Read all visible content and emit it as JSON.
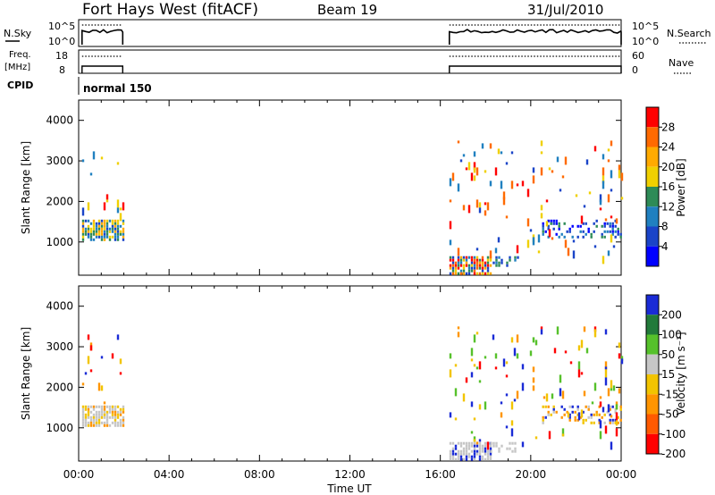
{
  "header": {
    "station": "Fort Hays West (fitACF)",
    "beam": "Beam 19",
    "date": "31/Jul/2010"
  },
  "top_panels": {
    "nsky_label": "N.Sky",
    "nsky_ticks": [
      "10^5",
      "10^0"
    ],
    "nsearch_label": "N.Search",
    "nsearch_ticks": [
      "10^5",
      "10^0"
    ],
    "freq_label_1": "Freq.",
    "freq_label_2": "[MHz]",
    "freq_ticks": [
      "18",
      "8"
    ],
    "nave_label": "Nave",
    "nave_ticks": [
      "60",
      "0"
    ],
    "cpid_label": "CPID",
    "cpid_value": "normal 150"
  },
  "colorbars": {
    "power": {
      "label": "Power [dB]",
      "ticks": [
        "28",
        "24",
        "20",
        "16",
        "12",
        "8",
        "4"
      ],
      "colors": [
        "#ff0000",
        "#ff6a00",
        "#ffaa00",
        "#f0d000",
        "#2e8b57",
        "#2080c0",
        "#1a44c8",
        "#0000ff"
      ]
    },
    "velocity": {
      "label": "Velocity [m s⁻¹]",
      "ticks": [
        "200",
        "100",
        "50",
        "15",
        "-15",
        "-50",
        "-100",
        "-200"
      ],
      "colors": [
        "#1a2bd6",
        "#227a3a",
        "#56c12b",
        "#c6c6c6",
        "#f2c400",
        "#ff9500",
        "#ff5a00",
        "#ff0000"
      ]
    }
  },
  "chart_data": [
    {
      "type": "heatmap",
      "title": "Power",
      "ylabel": "Slant Range [km]",
      "yticks": [
        "4000",
        "3000",
        "2000",
        "1000"
      ],
      "xticks": [
        "00:00",
        "04:00",
        "08:00",
        "12:00",
        "16:00",
        "20:00",
        "00:00"
      ],
      "xlim_hours": [
        0,
        24
      ],
      "ylim_km": [
        180,
        4500
      ],
      "blocks": [
        {
          "t0": 0.15,
          "t1": 1.95,
          "r0": 1050,
          "r1": 1550,
          "dense": true,
          "palette": [
            3,
            4,
            5,
            6,
            2
          ]
        },
        {
          "t0": 16.4,
          "t1": 18.2,
          "r0": 200,
          "r1": 650,
          "dense": true,
          "palette": [
            0,
            1,
            2,
            3,
            4,
            5,
            6
          ]
        },
        {
          "t0": 18.2,
          "t1": 19.5,
          "r0": 450,
          "r1": 650,
          "dense": false,
          "palette": [
            5,
            6,
            4
          ]
        },
        {
          "t0": 20.5,
          "t1": 24.0,
          "r0": 1150,
          "r1": 1550,
          "dense": false,
          "palette": [
            4,
            5,
            6,
            7
          ]
        },
        {
          "t0": 0.15,
          "t1": 1.95,
          "r0": 1600,
          "r1": 3300,
          "dense": false,
          "sparse": true,
          "palette": [
            5,
            6,
            3,
            0
          ]
        },
        {
          "t0": 16.4,
          "t1": 24.0,
          "r0": 650,
          "r1": 3500,
          "dense": false,
          "sparse": true,
          "palette": [
            5,
            6,
            3,
            1,
            0
          ]
        }
      ]
    },
    {
      "type": "heatmap",
      "title": "Velocity",
      "ylabel": "Slant Range [km]",
      "yticks": [
        "4000",
        "3000",
        "2000",
        "1000"
      ],
      "xticks": [
        "00:00",
        "04:00",
        "08:00",
        "12:00",
        "16:00",
        "20:00",
        "00:00"
      ],
      "xlabel": "Time UT",
      "xlim_hours": [
        0,
        24
      ],
      "ylim_km": [
        180,
        4500
      ],
      "blocks": [
        {
          "t0": 0.15,
          "t1": 1.95,
          "r0": 1050,
          "r1": 1550,
          "dense": true,
          "palette": [
            3,
            3,
            4,
            5,
            3
          ]
        },
        {
          "t0": 16.4,
          "t1": 18.2,
          "r0": 200,
          "r1": 650,
          "dense": true,
          "palette": [
            3,
            3,
            3,
            0
          ]
        },
        {
          "t0": 18.2,
          "t1": 19.5,
          "r0": 450,
          "r1": 650,
          "dense": false,
          "palette": [
            3,
            3
          ]
        },
        {
          "t0": 20.5,
          "t1": 24.0,
          "r0": 1150,
          "r1": 1550,
          "dense": false,
          "palette": [
            3,
            4,
            5,
            0
          ]
        },
        {
          "t0": 0.15,
          "t1": 1.95,
          "r0": 1600,
          "r1": 3300,
          "dense": false,
          "sparse": true,
          "palette": [
            0,
            4,
            5,
            7
          ]
        },
        {
          "t0": 16.4,
          "t1": 24.0,
          "r0": 650,
          "r1": 3500,
          "dense": false,
          "sparse": true,
          "palette": [
            0,
            4,
            5,
            7,
            2
          ]
        }
      ]
    }
  ]
}
